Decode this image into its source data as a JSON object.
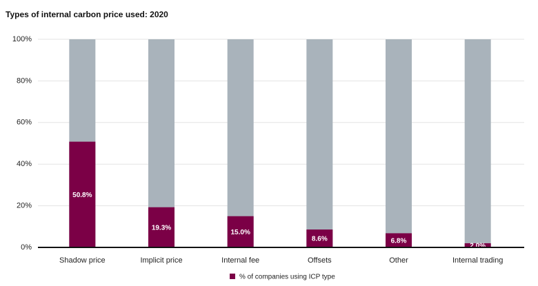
{
  "chart_data": {
    "type": "bar",
    "title": "Types of internal carbon price used: 2020",
    "categories": [
      "Shadow price",
      "Implicit price",
      "Internal fee",
      "Offsets",
      "Other",
      "Internal trading"
    ],
    "series": [
      {
        "name": "% of companies using ICP type",
        "color": "#7b0046",
        "values": [
          50.8,
          19.3,
          15.0,
          8.6,
          6.8,
          2.0
        ],
        "value_labels": [
          "50.8%",
          "19.3%",
          "15.0%",
          "8.6%",
          "6.8%",
          "2.0%"
        ]
      }
    ],
    "track_color": "#a9b3bb",
    "ylim": [
      0,
      100
    ],
    "yticks": [
      {
        "value": 0,
        "label": "0%"
      },
      {
        "value": 20,
        "label": "20%"
      },
      {
        "value": 40,
        "label": "40%"
      },
      {
        "value": 60,
        "label": "60%"
      },
      {
        "value": 80,
        "label": "80%"
      },
      {
        "value": 100,
        "label": "100%"
      }
    ],
    "grid": true,
    "legend": "bottom"
  }
}
